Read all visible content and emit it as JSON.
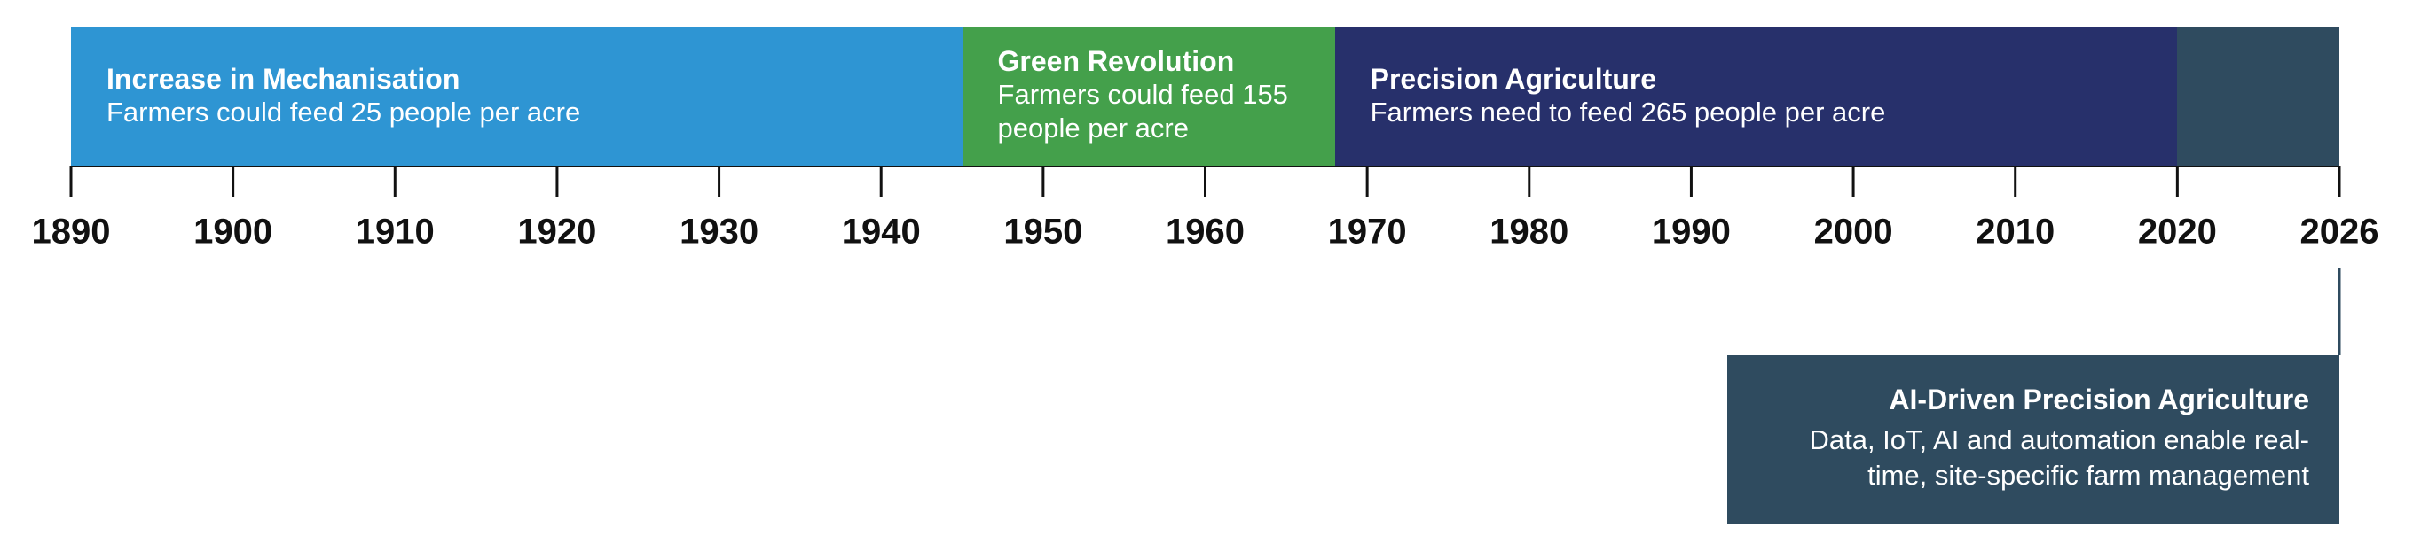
{
  "chart_data": {
    "type": "timeline",
    "xticks": [
      1890,
      1900,
      1910,
      1920,
      1930,
      1940,
      1950,
      1960,
      1970,
      1980,
      1990,
      2000,
      2010,
      2020,
      2026
    ],
    "eras": [
      {
        "start": 1890,
        "end": 1945,
        "color": "#2e95d3",
        "title": "Increase in Mechanisation",
        "text": "Farmers could feed 25 people per acre"
      },
      {
        "start": 1945,
        "end": 1968,
        "color": "#44a04b",
        "title": "Green Revolution",
        "text": "Farmers could feed 155 people per acre"
      },
      {
        "start": 1968,
        "end": 2020,
        "color": "#27306b",
        "title": "Precision Agriculture",
        "text": "Farmers need to feed 265 people per acre"
      },
      {
        "start": 2020,
        "end": 2026,
        "color": "#2f4b5f"
      }
    ],
    "callout": {
      "at": 2026,
      "color": "#2f4b5f",
      "title": "AI-Driven Precision Agriculture",
      "text": "Data, IoT, AI and automation enable real-time, site-specific farm management"
    }
  }
}
